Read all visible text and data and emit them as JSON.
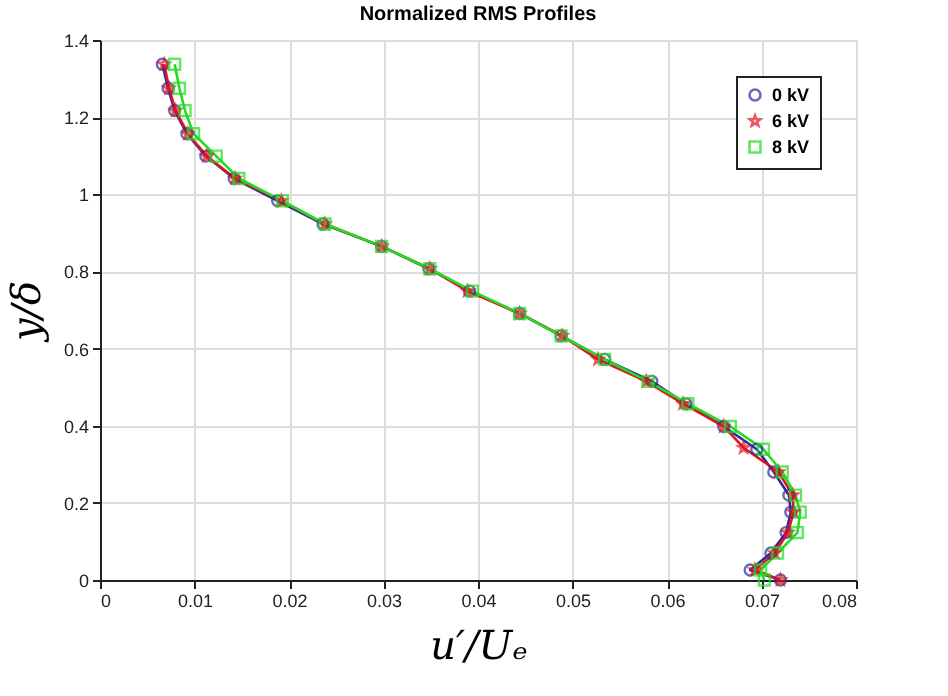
{
  "chart_data": {
    "type": "line",
    "title": "Normalized RMS Profiles",
    "xlabel": "u′/Uₑ",
    "ylabel": "y/δ",
    "xlim": [
      0,
      0.08
    ],
    "xticks": [
      0,
      0.01,
      0.02,
      0.03,
      0.04,
      0.05,
      0.06,
      0.07,
      0.08
    ],
    "ylim": [
      0,
      1.4
    ],
    "yticks": [
      0,
      0.2,
      0.4,
      0.6,
      0.8,
      1,
      1.2,
      1.4
    ],
    "grid": true,
    "legend": "top right",
    "line_style": "solid",
    "series": [
      {
        "name": "0 kV",
        "color": "#2b2b9e",
        "marker": "circle",
        "x": [
          0.0066,
          0.0072,
          0.0079,
          0.0092,
          0.0112,
          0.0142,
          0.0188,
          0.0236,
          0.0298,
          0.0348,
          0.0391,
          0.0444,
          0.0488,
          0.0534,
          0.0584,
          0.062,
          0.066,
          0.0695,
          0.0713,
          0.0729,
          0.0731,
          0.0726,
          0.071,
          0.0688,
          0.072
        ],
        "values": [
          1.337,
          1.275,
          1.217,
          1.157,
          1.099,
          1.041,
          0.983,
          0.923,
          0.865,
          0.807,
          0.749,
          0.691,
          0.633,
          0.572,
          0.515,
          0.457,
          0.398,
          0.339,
          0.28,
          0.22,
          0.176,
          0.123,
          0.07,
          0.026,
          0
        ]
      },
      {
        "name": "6 kV",
        "color": "#e0141e",
        "marker": "star",
        "x": [
          0.0068,
          0.0073,
          0.008,
          0.0093,
          0.0113,
          0.0143,
          0.0192,
          0.0238,
          0.0298,
          0.0349,
          0.0389,
          0.0444,
          0.0489,
          0.0527,
          0.0578,
          0.0617,
          0.066,
          0.0681,
          0.0718,
          0.0733,
          0.0734,
          0.0728,
          0.0714,
          0.0693,
          0.072
        ],
        "values": [
          1.337,
          1.275,
          1.217,
          1.157,
          1.099,
          1.041,
          0.983,
          0.923,
          0.865,
          0.807,
          0.749,
          0.691,
          0.633,
          0.572,
          0.515,
          0.457,
          0.398,
          0.343,
          0.28,
          0.22,
          0.176,
          0.123,
          0.07,
          0.026,
          0
        ]
      },
      {
        "name": "8 kV",
        "color": "#22dd22",
        "marker": "square",
        "x": [
          0.0079,
          0.0084,
          0.009,
          0.0099,
          0.0123,
          0.0147,
          0.0193,
          0.0238,
          0.0298,
          0.0349,
          0.0394,
          0.0444,
          0.0488,
          0.0534,
          0.058,
          0.0622,
          0.0667,
          0.0702,
          0.0722,
          0.0736,
          0.0741,
          0.0738,
          0.0717,
          0.0699,
          0.0703
        ],
        "values": [
          1.337,
          1.275,
          1.217,
          1.157,
          1.099,
          1.041,
          0.983,
          0.923,
          0.865,
          0.807,
          0.749,
          0.691,
          0.633,
          0.572,
          0.515,
          0.457,
          0.398,
          0.339,
          0.28,
          0.22,
          0.176,
          0.123,
          0.07,
          0.026,
          0
        ]
      }
    ]
  }
}
